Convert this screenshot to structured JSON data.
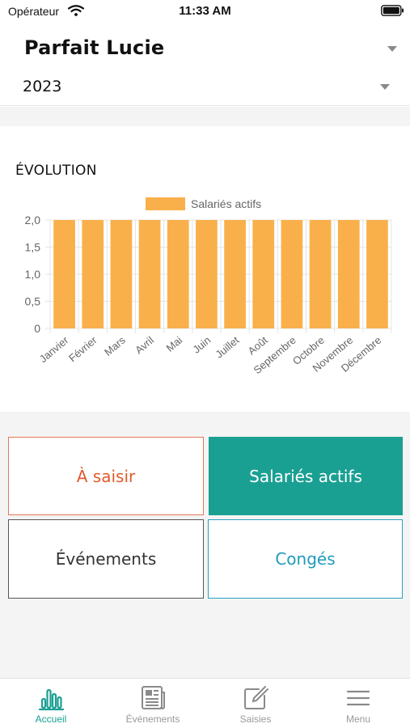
{
  "status_bar": {
    "carrier": "Opérateur",
    "time": "11:33 AM"
  },
  "header": {
    "employee_name": "Parfait Lucie",
    "year": "2023"
  },
  "chart_section": {
    "title": "ÉVOLUTION"
  },
  "chart_data": {
    "type": "bar",
    "title": "",
    "xlabel": "",
    "ylabel": "",
    "categories": [
      "Janvier",
      "Février",
      "Mars",
      "Avril",
      "Mai",
      "Juin",
      "Juillet",
      "Août",
      "Septembre",
      "Octobre",
      "Novembre",
      "Décembre"
    ],
    "series": [
      {
        "name": "Salariés actifs",
        "color": "#f9b04b",
        "values": [
          2,
          2,
          2,
          2,
          2,
          2,
          2,
          2,
          2,
          2,
          2,
          2
        ]
      }
    ],
    "ylim": [
      0,
      2
    ],
    "yticks": [
      "0",
      "0,5",
      "1,0",
      "1,5",
      "2,0"
    ],
    "grid": true,
    "legend": "top-center"
  },
  "tiles": {
    "a_saisir": "À saisir",
    "salaries_actifs": "Salariés actifs",
    "evenements": "Événements",
    "conges": "Congés"
  },
  "tabbar": {
    "accent_color": "#1aa093",
    "items": [
      {
        "label": "Accueil",
        "icon": "bar-chart-icon",
        "active": true
      },
      {
        "label": "Événements",
        "icon": "newspaper-icon",
        "active": false
      },
      {
        "label": "Saisies",
        "icon": "edit-icon",
        "active": false
      },
      {
        "label": "Menu",
        "icon": "menu-icon",
        "active": false
      }
    ]
  }
}
